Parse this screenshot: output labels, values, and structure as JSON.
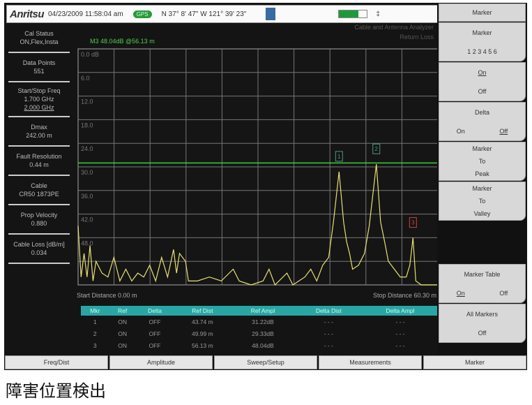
{
  "status": {
    "logo": "Anritsu",
    "datetime": "04/23/2009 11:58:04 am",
    "gps": "GPS",
    "coords": "N 37° 8' 47\" W 121° 39' 23\"",
    "battery_level": 0.7,
    "battery_tip": "‡"
  },
  "mode": {
    "line1": "Cable and Antenna Analyzer",
    "line2": "Return Loss"
  },
  "marker_readout": "M3 48.04dB @56.13 m",
  "left_panel": [
    {
      "label": "Cal Status",
      "value": "ON,Flex,Insta"
    },
    {
      "label": "Data Points",
      "value": "551"
    },
    {
      "label": "Start/Stop Freq",
      "value": "1.700 GHz",
      "value2": "2.000 GHz"
    },
    {
      "label": "Dmax",
      "value": "242.00 m"
    },
    {
      "label": "Fault Resolution",
      "value": "0.44 m"
    },
    {
      "label": "Cable",
      "value": "CR50 1873PE"
    },
    {
      "label": "Prop Velocity",
      "value": "0.880"
    },
    {
      "label": "Cable Loss [dB/m]",
      "value": "0.034"
    }
  ],
  "chart_data": {
    "type": "line",
    "xlabel": "",
    "ylabel": "",
    "xlim": [
      0,
      60.3
    ],
    "ylim": [
      0,
      60
    ],
    "y_inverted": true,
    "yticks": [
      "0.0 dB",
      "6.0",
      "12.0",
      "18.0",
      "24.0",
      "30.0",
      "36.0",
      "42.0",
      "48.0"
    ],
    "grid": true,
    "limit_line_db": 29,
    "colors": {
      "trace": "#e8e070",
      "limit": "#3ad03a",
      "grid": "#777",
      "marker": "#4a9a7a",
      "active_marker": "#d04040"
    },
    "trace": [
      [
        0,
        45
      ],
      [
        0.5,
        58
      ],
      [
        1,
        52
      ],
      [
        1.5,
        58
      ],
      [
        2,
        50
      ],
      [
        2.5,
        59
      ],
      [
        3,
        54
      ],
      [
        4,
        57
      ],
      [
        5,
        58
      ],
      [
        6,
        53
      ],
      [
        7,
        59
      ],
      [
        8,
        56
      ],
      [
        9,
        59
      ],
      [
        10,
        57
      ],
      [
        11,
        58
      ],
      [
        12,
        55
      ],
      [
        13,
        59
      ],
      [
        14,
        53
      ],
      [
        15,
        58
      ],
      [
        16,
        51
      ],
      [
        16.5,
        57
      ],
      [
        17,
        52
      ],
      [
        18,
        54
      ],
      [
        18.5,
        59
      ],
      [
        20,
        59
      ],
      [
        22,
        58
      ],
      [
        24,
        59
      ],
      [
        26,
        56
      ],
      [
        27,
        59
      ],
      [
        29,
        60
      ],
      [
        31,
        59
      ],
      [
        32,
        56
      ],
      [
        33,
        60
      ],
      [
        35,
        57
      ],
      [
        36,
        60
      ],
      [
        38,
        58
      ],
      [
        39,
        56
      ],
      [
        40,
        59
      ],
      [
        41,
        55
      ],
      [
        42,
        53
      ],
      [
        42.8,
        44
      ],
      [
        43.74,
        31.2
      ],
      [
        44.5,
        44
      ],
      [
        45,
        49
      ],
      [
        45.5,
        52
      ],
      [
        46,
        56
      ],
      [
        47,
        55
      ],
      [
        48,
        52
      ],
      [
        48.8,
        45
      ],
      [
        49.99,
        29.3
      ],
      [
        50.7,
        44
      ],
      [
        51.5,
        50
      ],
      [
        52,
        54
      ],
      [
        53,
        56
      ],
      [
        54,
        58
      ],
      [
        55,
        58
      ],
      [
        55.6,
        55
      ],
      [
        56.13,
        48
      ],
      [
        56.6,
        59
      ],
      [
        57.5,
        60
      ],
      [
        60.3,
        60
      ]
    ],
    "markers": [
      {
        "id": "1",
        "x": 43.74,
        "y": 31.22
      },
      {
        "id": "2",
        "x": 49.99,
        "y": 29.33
      },
      {
        "id": "3",
        "x": 56.13,
        "y": 48.04,
        "active": true
      }
    ]
  },
  "distance": {
    "start": "Start Distance 0.00 m",
    "stop": "Stop Distance 60.30 m"
  },
  "table": {
    "headers": [
      "Mkr",
      "Ref",
      "Delta",
      "Ref Dist",
      "Ref Ampl",
      "Delta Dist",
      "Delta Ampl"
    ],
    "rows": [
      [
        "1",
        "ON",
        "OFF",
        "43.74 m",
        "31.22dB",
        "- - -",
        "- - -"
      ],
      [
        "2",
        "ON",
        "OFF",
        "49.99 m",
        "29.33dB",
        "- - -",
        "- - -"
      ],
      [
        "3",
        "ON",
        "OFF",
        "56.13 m",
        "48.04dB",
        "- - -",
        "- - -"
      ]
    ]
  },
  "softkeys": {
    "title": "Marker",
    "marker": "Marker",
    "marker_nums": "1 2 3 4 5 6",
    "on": "On",
    "off": "Off",
    "delta": "Delta",
    "mtp1": "Marker",
    "mtp2": "To",
    "mtp3": "Peak",
    "mtv1": "Marker",
    "mtv2": "To",
    "mtv3": "Valley",
    "table": "Marker Table",
    "all": "All Markers"
  },
  "bottom_tabs": [
    "Freq/Dist",
    "Amplitude",
    "Sweep/Setup",
    "Measurements",
    "Marker"
  ],
  "caption": "障害位置検出"
}
